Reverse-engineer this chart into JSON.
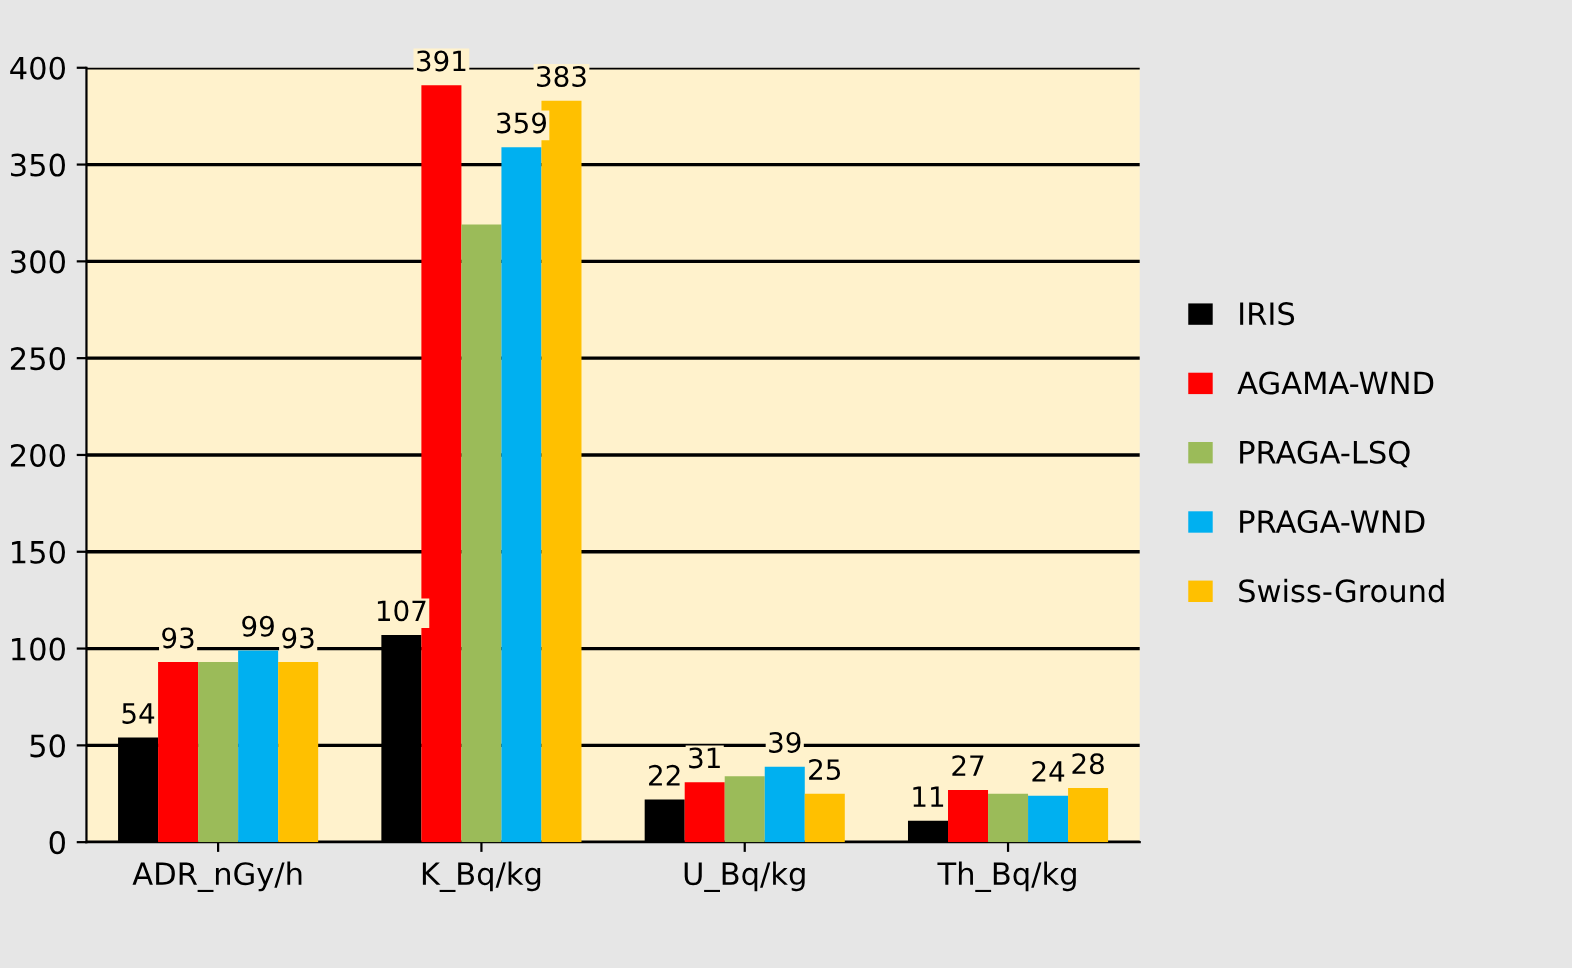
{
  "chart_data": {
    "type": "bar",
    "categories": [
      "ADR_nGy/h",
      "K_Bq/kg",
      "U_Bq/kg",
      "Th_Bq/kg"
    ],
    "series": [
      {
        "name": "IRIS",
        "color": "#000000",
        "values": [
          54,
          107,
          22,
          11
        ],
        "value_labels": [
          "54",
          "107",
          "22",
          "11"
        ]
      },
      {
        "name": "AGAMA-WND",
        "color": "#ff0000",
        "values": [
          93,
          391,
          31,
          27
        ],
        "value_labels": [
          "93",
          "391",
          "31",
          "27"
        ]
      },
      {
        "name": "PRAGA-LSQ",
        "color": "#9bbb59",
        "values": [
          93,
          319,
          34,
          25
        ],
        "value_labels": [
          null,
          null,
          null,
          null
        ]
      },
      {
        "name": "PRAGA-WND",
        "color": "#00b0f0",
        "values": [
          99,
          359,
          39,
          24
        ],
        "value_labels": [
          "99",
          "359",
          "39",
          "24"
        ]
      },
      {
        "name": "Swiss-Ground",
        "color": "#ffc000",
        "values": [
          93,
          383,
          25,
          28
        ],
        "value_labels": [
          "93",
          "383",
          "25",
          "28"
        ]
      }
    ],
    "ylim": [
      0,
      400
    ],
    "yticks": [
      0,
      50,
      100,
      150,
      200,
      250,
      300,
      350,
      400
    ],
    "grid": "y",
    "legend": "right"
  }
}
